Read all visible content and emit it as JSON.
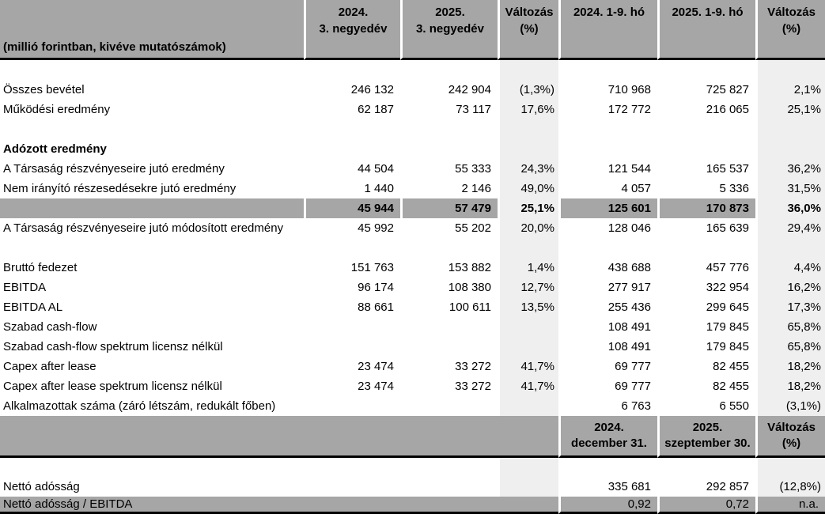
{
  "colors": {
    "header_gray": "#a6a6a6",
    "light_gray": "#efefef",
    "rule_black": "#000000",
    "background": "#ffffff"
  },
  "header": {
    "unit_note": "(millió forintban, kivéve mutatószámok)",
    "columns": [
      {
        "line1": "2024.",
        "line2": "3. negyedév"
      },
      {
        "line1": "2025.",
        "line2": "3. negyedév"
      },
      {
        "line1": "Változás",
        "line2": "(%)"
      },
      {
        "line1": "2024. 1-9. hó",
        "line2": ""
      },
      {
        "line1": "2025. 1-9. hó",
        "line2": ""
      },
      {
        "line1": "Változás",
        "line2": "(%)"
      }
    ]
  },
  "rows": [
    {
      "label": "",
      "values": [
        "",
        "",
        "",
        "",
        "",
        ""
      ]
    },
    {
      "label": "Összes bevétel",
      "values": [
        "246 132",
        "242 904",
        "(1,3%)",
        "710 968",
        "725 827",
        "2,1%"
      ]
    },
    {
      "label": "Működési eredmény",
      "values": [
        "62 187",
        "73 117",
        "17,6%",
        "172 772",
        "216 065",
        "25,1%"
      ]
    },
    {
      "label": "",
      "values": [
        "",
        "",
        "",
        "",
        "",
        ""
      ]
    },
    {
      "label": "Adózott eredmény",
      "bold_label": true,
      "values": [
        "",
        "",
        "",
        "",
        "",
        ""
      ]
    },
    {
      "label": "A Társaság részvényeseire jutó eredmény",
      "values": [
        "44 504",
        "55 333",
        "24,3%",
        "121 544",
        "165 537",
        "36,2%"
      ]
    },
    {
      "label": "Nem irányító részesedésekre jutó eredmény",
      "values": [
        "1 440",
        "2 146",
        "49,0%",
        "4 057",
        "5 336",
        "31,5%"
      ]
    },
    {
      "label": "",
      "row_type": "subtotal",
      "values": [
        "45 944",
        "57 479",
        "25,1%",
        "125 601",
        "170 873",
        "36,0%"
      ]
    },
    {
      "label": "A Társaság részvényeseire jutó módosított eredmény",
      "values": [
        "45 992",
        "55 202",
        "20,0%",
        "128 046",
        "165 639",
        "29,4%"
      ]
    },
    {
      "label": "",
      "values": [
        "",
        "",
        "",
        "",
        "",
        ""
      ]
    },
    {
      "label": "Bruttó fedezet",
      "values": [
        "151 763",
        "153 882",
        "1,4%",
        "438 688",
        "457 776",
        "4,4%"
      ]
    },
    {
      "label": "EBITDA",
      "values": [
        "96 174",
        "108 380",
        "12,7%",
        "277 917",
        "322 954",
        "16,2%"
      ]
    },
    {
      "label": "EBITDA AL",
      "values": [
        "88 661",
        "100 611",
        "13,5%",
        "255 436",
        "299 645",
        "17,3%"
      ]
    },
    {
      "label": "Szabad cash-flow",
      "values": [
        "",
        "",
        "",
        "108 491",
        "179 845",
        "65,8%"
      ]
    },
    {
      "label": "Szabad cash-flow spektrum licensz nélkül",
      "values": [
        "",
        "",
        "",
        "108 491",
        "179 845",
        "65,8%"
      ]
    },
    {
      "label": "Capex after lease",
      "values": [
        "23 474",
        "33 272",
        "41,7%",
        "69 777",
        "82 455",
        "18,2%"
      ]
    },
    {
      "label": "Capex after lease spektrum licensz nélkül",
      "values": [
        "23 474",
        "33 272",
        "41,7%",
        "69 777",
        "82 455",
        "18,2%"
      ]
    },
    {
      "label": "Alkalmazottak száma (záró létszám, redukált főben)",
      "values": [
        "",
        "",
        "",
        "6 763",
        "6 550",
        "(3,1%)"
      ]
    }
  ],
  "section2": {
    "header": [
      {
        "line1": "2024.",
        "line2": "december 31."
      },
      {
        "line1": "2025.",
        "line2": "szeptember 30."
      },
      {
        "line1": "Változás",
        "line2": "(%)"
      }
    ],
    "rows": [
      {
        "label": "",
        "row_type": "empty",
        "values": [
          "",
          "",
          "",
          "",
          "",
          ""
        ]
      },
      {
        "label": "Nettó adósság",
        "values": [
          "",
          "",
          "",
          "335 681",
          "292 857",
          "(12,8%)"
        ]
      },
      {
        "label": "Nettó adósság / EBITDA",
        "row_type": "gray",
        "values": [
          "",
          "",
          "",
          "0,92",
          "0,72",
          "n.a."
        ]
      }
    ]
  }
}
